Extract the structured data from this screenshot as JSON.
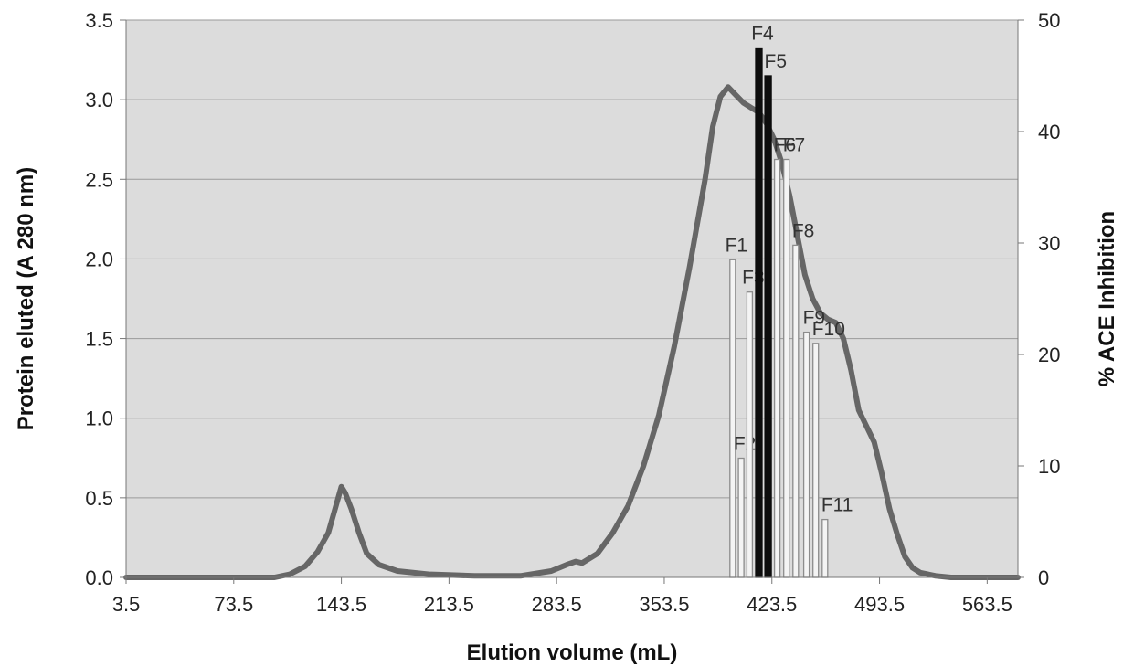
{
  "chart_data": {
    "type": "line",
    "title": "",
    "xlabel": "Elution volume (mL)",
    "ylabel": "Protein eluted (A  280 nm)",
    "y2label": "% ACE Inhibition",
    "xlim": [
      3.5,
      583.5
    ],
    "ylim": [
      0,
      3.5
    ],
    "y2lim": [
      0,
      50
    ],
    "x_ticks": [
      "3.5",
      "73.5",
      "143.5",
      "213.5",
      "283.5",
      "353.5",
      "423.5",
      "493.5",
      "563.5"
    ],
    "y_ticks": [
      "0.0",
      "0.5",
      "1.0",
      "1.5",
      "2.0",
      "2.5",
      "3.0",
      "3.5"
    ],
    "y2_ticks": [
      "0",
      "10",
      "20",
      "30",
      "40",
      "50"
    ],
    "grid": "horizontal",
    "plot_background": "#dcdcdc",
    "line_color": "#666666",
    "series": [
      {
        "type": "line",
        "axis": "left",
        "x": [
          3.5,
          60,
          100,
          110,
          120,
          128,
          135,
          140,
          143.5,
          146,
          150,
          155,
          160,
          168,
          180,
          200,
          230,
          260,
          280,
          290,
          296,
          300,
          310,
          320,
          330,
          340,
          350,
          360,
          370,
          380,
          385,
          390,
          395,
          400,
          405,
          410,
          415,
          420,
          425,
          430,
          435,
          440,
          445,
          450,
          455,
          460,
          465,
          470,
          475,
          480,
          490,
          495,
          500,
          505,
          510,
          515,
          520,
          530,
          540,
          550,
          560,
          570,
          583.5
        ],
        "values": [
          0.0,
          0.0,
          0.0,
          0.02,
          0.07,
          0.16,
          0.28,
          0.45,
          0.57,
          0.53,
          0.43,
          0.28,
          0.15,
          0.08,
          0.04,
          0.02,
          0.01,
          0.01,
          0.04,
          0.08,
          0.1,
          0.09,
          0.15,
          0.28,
          0.45,
          0.7,
          1.02,
          1.45,
          1.95,
          2.5,
          2.83,
          3.02,
          3.08,
          3.03,
          2.98,
          2.95,
          2.92,
          2.85,
          2.75,
          2.6,
          2.4,
          2.15,
          1.9,
          1.75,
          1.66,
          1.62,
          1.6,
          1.5,
          1.3,
          1.05,
          0.85,
          0.65,
          0.43,
          0.27,
          0.13,
          0.06,
          0.03,
          0.01,
          0.0,
          0.0,
          0.0,
          0.0,
          0.0
        ]
      },
      {
        "type": "bar",
        "axis": "right",
        "categories": [
          "F1",
          "F2",
          "F3",
          "F4",
          "F5",
          "F6",
          "F7",
          "F8",
          "F9",
          "F10",
          "F11"
        ],
        "x": [
          398,
          403.5,
          409,
          415,
          421,
          427,
          433,
          439,
          446,
          452,
          458
        ],
        "values": [
          28.5,
          10.7,
          25.6,
          47.5,
          45.0,
          37.5,
          37.5,
          29.8,
          22.0,
          21.0,
          5.2
        ],
        "highlight": [
          "F4",
          "F5"
        ],
        "colors": {
          "normal": "#f4f4f4",
          "normal_edge": "#8c8c8c",
          "highlight": "#0d0d0d"
        }
      }
    ]
  }
}
